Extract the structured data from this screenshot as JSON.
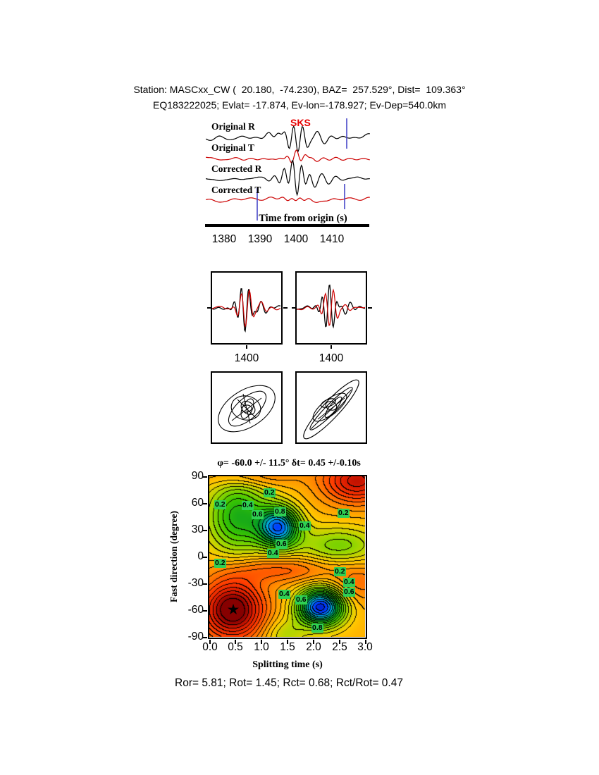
{
  "header": {
    "line1": "Station: MASCxx_CW (  20.180,  -74.230), BAZ=  257.529°, Dist=  109.363°",
    "line2": "EQ183222025; Evlat= -17.874, Ev-lon=-178.927; Ev-Dep=540.0km"
  },
  "seismograms": {
    "phase_label": "SKS",
    "trace_labels": [
      "Original R",
      "Original T",
      "Corrected R",
      "Corrected T"
    ],
    "xlabel": "Time from origin (s)",
    "xticks": [
      "1380",
      "1390",
      "1400",
      "1410"
    ]
  },
  "windows": {
    "tick_labels": [
      "1400",
      "1400"
    ]
  },
  "splitting_map": {
    "title": "φ= -60.0 +/- 11.5° δt= 0.45 +/-0.10s",
    "xlabel": "Splitting time (s)",
    "ylabel": "Fast direction (degree)",
    "xticks": [
      "0.0",
      "0.5",
      "1.0",
      "1.5",
      "2.0",
      "2.5",
      "3.0"
    ],
    "yticks": [
      "90",
      "60",
      "30",
      "0",
      "-30",
      "-60",
      "-90"
    ],
    "star": "★",
    "contour_labels": [
      {
        "text": "0.2",
        "fx": 0.387,
        "fy": 0.105
      },
      {
        "text": "0.2",
        "fx": 0.072,
        "fy": 0.18
      },
      {
        "text": "0.4",
        "fx": 0.248,
        "fy": 0.184
      },
      {
        "text": "0.6",
        "fx": 0.311,
        "fy": 0.241
      },
      {
        "text": "0.8",
        "fx": 0.459,
        "fy": 0.224
      },
      {
        "text": "0.2",
        "fx": 0.865,
        "fy": 0.232
      },
      {
        "text": "0.4",
        "fx": 0.617,
        "fy": 0.311
      },
      {
        "text": "0.6",
        "fx": 0.464,
        "fy": 0.425
      },
      {
        "text": "0.4",
        "fx": 0.414,
        "fy": 0.482
      },
      {
        "text": "0.2",
        "fx": 0.072,
        "fy": 0.544
      },
      {
        "text": "0.2",
        "fx": 0.842,
        "fy": 0.596
      },
      {
        "text": "0.4",
        "fx": 0.901,
        "fy": 0.662
      },
      {
        "text": "0.6",
        "fx": 0.901,
        "fy": 0.724
      },
      {
        "text": "0.4",
        "fx": 0.482,
        "fy": 0.737
      },
      {
        "text": "0.6",
        "fx": 0.595,
        "fy": 0.772
      },
      {
        "text": "0.8",
        "fx": 0.698,
        "fy": 0.947
      }
    ]
  },
  "results": {
    "summary": "Ror= 5.81; Rot= 1.45; Rct= 0.68; Rct/Rot= 0.47",
    "phi_deg": -60.0,
    "phi_err_deg": 11.5,
    "dt_s": 0.45,
    "dt_err_s": 0.1,
    "Ror": 5.81,
    "Rot": 1.45,
    "Rct": 0.68,
    "Rct_over_Rot": 0.47
  },
  "colors": {
    "trace_radial": "#000000",
    "trace_transverse": "#cc0000",
    "phase_label": "#e60000",
    "window_marker": "#4646c8",
    "contour_label_bg": "#2fd053"
  },
  "chart_data": [
    {
      "type": "line",
      "title": "Seismogram traces (radial and transverse, original and corrected)",
      "xlabel": "Time from origin (s)",
      "xlim": [
        1375,
        1419
      ],
      "xticks": [
        1380,
        1390,
        1400,
        1410
      ],
      "series": [
        {
          "name": "Original R",
          "color": "#000000"
        },
        {
          "name": "Original T",
          "color": "#cc0000"
        },
        {
          "name": "Corrected R",
          "color": "#000000"
        },
        {
          "name": "Corrected T",
          "color": "#cc0000"
        }
      ],
      "annotations": [
        {
          "text": "SKS",
          "x": 1400,
          "color": "#e60000"
        }
      ],
      "grid": false,
      "legend_position": "left-labels"
    },
    {
      "type": "line",
      "title": "Analysis window waveforms (two panels, original vs corrected overlaid)",
      "panels": [
        {
          "xtick": 1400
        },
        {
          "xtick": 1400
        }
      ],
      "series": [
        {
          "name": "radial",
          "color": "#000000"
        },
        {
          "name": "transverse",
          "color": "#cc0000"
        }
      ]
    },
    {
      "type": "scatter",
      "title": "Particle motion (before and after anisotropy correction)",
      "panels": 2
    },
    {
      "type": "heatmap",
      "title": "φ= -60.0 +/- 11.5° δt= 0.45 +/-0.10s",
      "xlabel": "Splitting time (s)",
      "ylabel": "Fast direction (degree)",
      "xlim": [
        0,
        3
      ],
      "ylim": [
        -90,
        90
      ],
      "xticks": [
        0,
        0.5,
        1,
        1.5,
        2,
        2.5,
        3
      ],
      "yticks": [
        90,
        60,
        30,
        0,
        -30,
        -60,
        -90
      ],
      "contour_levels": [
        0.2,
        0.4,
        0.6,
        0.8
      ],
      "best_fit": {
        "splitting_time_s": 0.45,
        "splitting_time_err_s": 0.1,
        "fast_direction_deg": -60.0,
        "fast_direction_err_deg": 11.5
      },
      "grid": false,
      "legend_position": "none"
    }
  ]
}
